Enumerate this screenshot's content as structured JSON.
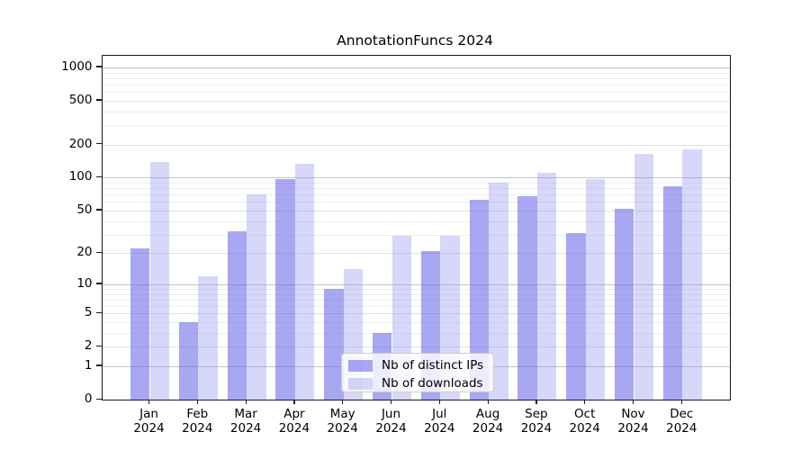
{
  "chart": {
    "title": "AnnotationFuncs 2024"
  },
  "chart_data": {
    "type": "bar",
    "title": "AnnotationFuncs 2024",
    "categories": [
      "Jan",
      "Feb",
      "Mar",
      "Apr",
      "May",
      "Jun",
      "Jul",
      "Aug",
      "Sep",
      "Oct",
      "Nov",
      "Dec"
    ],
    "category_year": "2024",
    "series": [
      {
        "name": "Nb of distinct IPs",
        "color": "rgba(104,104,233,0.58)",
        "color_hex_on_white": "#a7a7f2",
        "values": [
          22,
          4,
          32,
          97,
          9,
          3,
          21,
          63,
          68,
          31,
          52,
          83
        ]
      },
      {
        "name": "Nb of downloads",
        "color": "rgba(150,150,238,0.38)",
        "color_hex_on_white": "#d7d7f8",
        "values": [
          140,
          12,
          70,
          135,
          14,
          29,
          29,
          90,
          111,
          98,
          166,
          180
        ]
      }
    ],
    "yscale": "log1p",
    "yticks": [
      0,
      1,
      2,
      5,
      10,
      20,
      50,
      100,
      200,
      500,
      1000
    ],
    "ytick_labels": [
      "0",
      "1",
      "2",
      "5",
      "10",
      "20",
      "50",
      "100",
      "200",
      "500",
      "1000"
    ],
    "ylim": [
      0,
      1285
    ],
    "grid": "on",
    "gridline_major_values": [
      1,
      10,
      100,
      1000
    ],
    "gridline_mid_values": [
      2,
      5,
      20,
      50,
      200,
      500
    ],
    "gridline_minor_values": [
      3,
      4,
      6,
      7,
      8,
      9,
      30,
      40,
      60,
      70,
      80,
      90,
      300,
      400,
      600,
      700,
      800,
      900
    ],
    "grid_color_major": "#c4c4c4",
    "grid_color_mid": "#e1e1e1",
    "grid_color_minor": "#eeeeee",
    "legend_position": "lower center"
  }
}
